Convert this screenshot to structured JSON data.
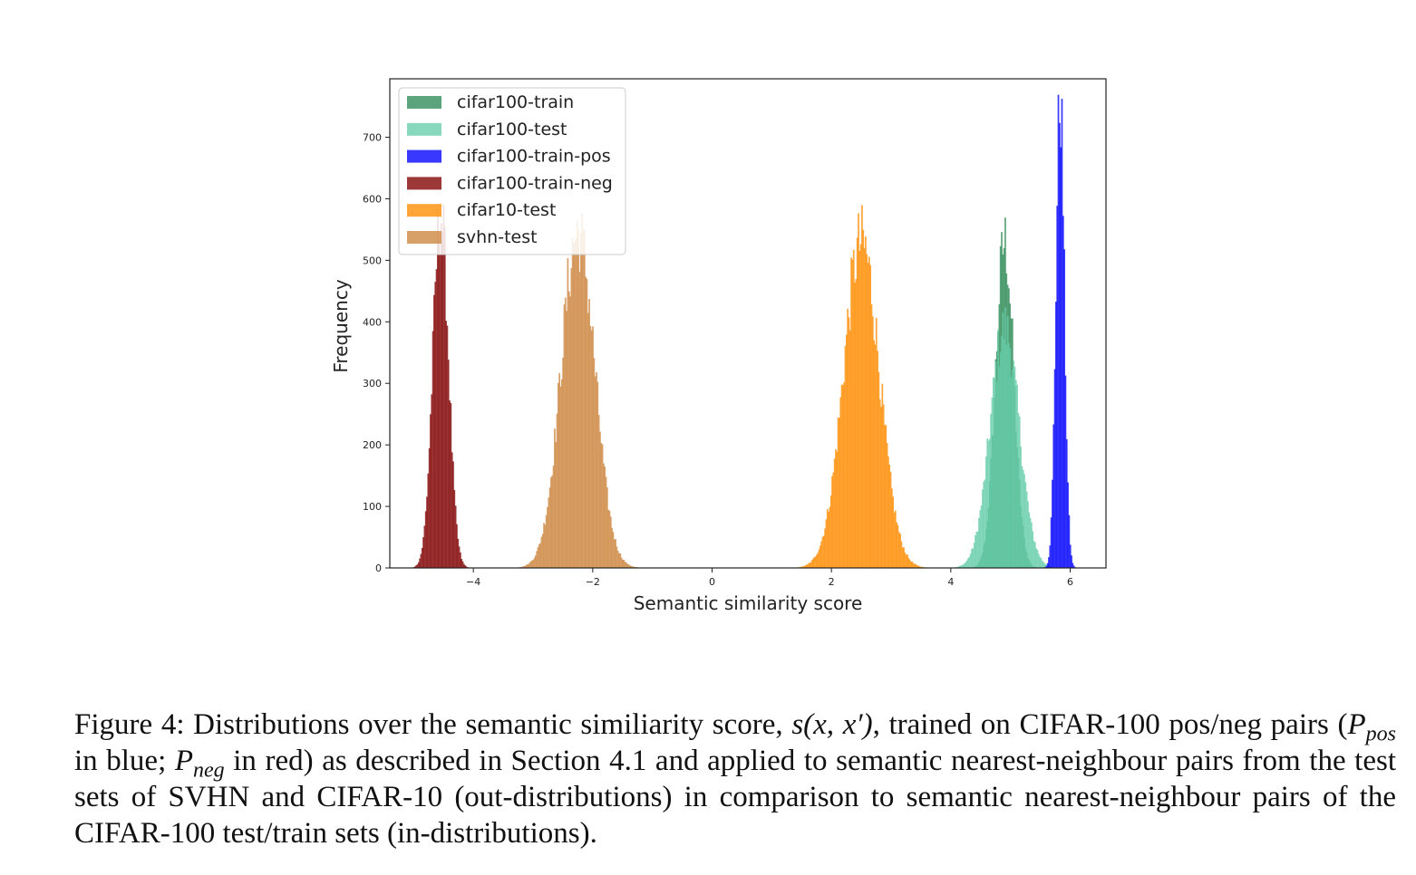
{
  "chart_data": {
    "type": "histogram",
    "xlabel": "Semantic similarity score",
    "ylabel": "Frequency",
    "xlim": [
      -5.4,
      6.6
    ],
    "ylim": [
      0,
      795
    ],
    "xticks": [
      -4,
      -2,
      0,
      2,
      4,
      6
    ],
    "xtick_labels": [
      "−4",
      "−2",
      "0",
      "2",
      "4",
      "6"
    ],
    "yticks": [
      0,
      100,
      200,
      300,
      400,
      500,
      600,
      700
    ],
    "grid": false,
    "legend_position": "upper-left",
    "series": [
      {
        "name": "cifar100-train",
        "color": "#2e8b57",
        "opacity": 0.78,
        "mean": 4.9,
        "std": 0.15,
        "peak": 530,
        "bin_width": 0.02
      },
      {
        "name": "cifar100-test",
        "color": "#66cdaa",
        "opacity": 0.78,
        "mean": 4.9,
        "std": 0.24,
        "peak": 390,
        "bin_width": 0.02
      },
      {
        "name": "cifar100-train-pos",
        "color": "#0000ff",
        "opacity": 0.78,
        "mean": 5.83,
        "std": 0.07,
        "peak": 765,
        "bin_width": 0.02
      },
      {
        "name": "cifar100-train-neg",
        "color": "#800000",
        "opacity": 0.78,
        "mean": -4.55,
        "std": 0.13,
        "peak": 575,
        "bin_width": 0.02
      },
      {
        "name": "cifar10-test",
        "color": "#ff8c00",
        "opacity": 0.78,
        "mean": 2.5,
        "std": 0.3,
        "peak": 530,
        "bin_width": 0.02
      },
      {
        "name": "svhn-test",
        "color": "#cd853f",
        "opacity": 0.78,
        "mean": -2.25,
        "std": 0.28,
        "peak": 545,
        "bin_width": 0.02
      }
    ]
  },
  "caption": {
    "prefix": "Figure 4: Distributions over the semantic similiarity score,",
    "math_score": "s(x, x′)",
    "part1": ", trained on CIFAR-100 pos/neg pairs (",
    "p_pos_main": "P",
    "p_pos_sub": "pos",
    "part2": " in blue; ",
    "p_neg_main": "P",
    "p_neg_sub": "neg",
    "part3": " in red) as described in Section 4.1 and applied to semantic nearest-neighbour pairs from the test sets of SVHN and CIFAR-10 (out-distributions) in comparison to semantic nearest-neighbour pairs of the CIFAR-100 test/train sets (in-distributions)."
  }
}
